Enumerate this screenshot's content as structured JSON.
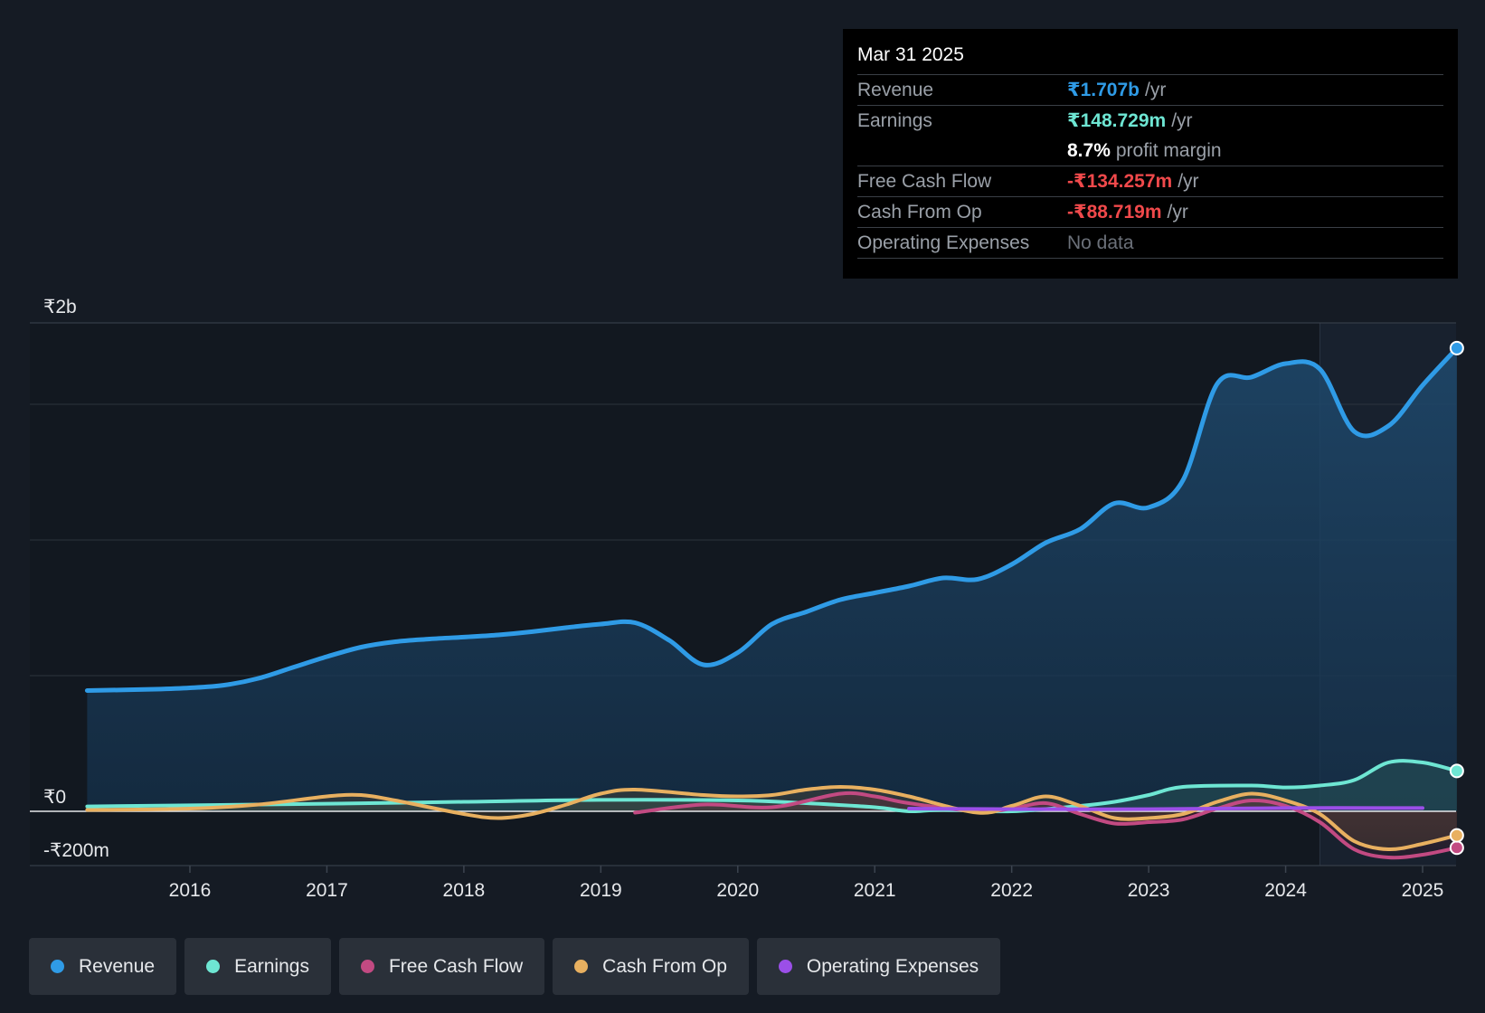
{
  "colors": {
    "background": "#151b24",
    "revenue": "#2f9be6",
    "earnings": "#6ee6d3",
    "free_cash_flow": "#c24a82",
    "cash_from_op": "#e8b060",
    "operating_expenses": "#9b4fe8",
    "negative": "#f0494b",
    "grid": "#2c333d"
  },
  "tooltip": {
    "date": "Mar 31 2025",
    "rows": [
      {
        "label": "Revenue",
        "value": "₹1.707b",
        "unit": "/yr",
        "color": "#2f9be6"
      },
      {
        "label": "Earnings",
        "value": "₹148.729m",
        "unit": "/yr",
        "color": "#6ee6d3"
      },
      {
        "label": "",
        "value": "8.7%",
        "unit": "profit margin",
        "color": "#ffffff"
      },
      {
        "label": "Free Cash Flow",
        "value": "-₹134.257m",
        "unit": "/yr",
        "color": "#f0494b"
      },
      {
        "label": "Cash From Op",
        "value": "-₹88.719m",
        "unit": "/yr",
        "color": "#f0494b"
      },
      {
        "label": "Operating Expenses",
        "value": "No data",
        "unit": "",
        "color": "#6b7079"
      }
    ]
  },
  "chart_data": {
    "type": "area",
    "y_unit": "₹ millions",
    "ylim": [
      -200,
      1800
    ],
    "y_tick_labels": [
      {
        "value": 1800,
        "label": "₹2b"
      },
      {
        "value": 0,
        "label": "₹0"
      },
      {
        "value": -200,
        "label": "-₹200m"
      }
    ],
    "y_gridlines": [
      1800,
      1500,
      1000,
      500,
      0
    ],
    "xlim": [
      2015.25,
      2025.25
    ],
    "x_ticks": [
      2016,
      2017,
      2018,
      2019,
      2020,
      2021,
      2022,
      2023,
      2024,
      2025
    ],
    "x_tick_labels": [
      "2016",
      "2017",
      "2018",
      "2019",
      "2020",
      "2021",
      "2022",
      "2023",
      "2024",
      "2025"
    ],
    "highlight_range": [
      2024.25,
      2025.25
    ],
    "series": [
      {
        "name": "Revenue",
        "key": "revenue",
        "fill": true,
        "points": [
          [
            2015.25,
            445
          ],
          [
            2015.75,
            450
          ],
          [
            2016.0,
            455
          ],
          [
            2016.25,
            465
          ],
          [
            2016.5,
            490
          ],
          [
            2016.75,
            530
          ],
          [
            2017.0,
            570
          ],
          [
            2017.25,
            605
          ],
          [
            2017.5,
            625
          ],
          [
            2017.75,
            635
          ],
          [
            2018.0,
            642
          ],
          [
            2018.25,
            650
          ],
          [
            2018.5,
            662
          ],
          [
            2018.75,
            677
          ],
          [
            2019.0,
            690
          ],
          [
            2019.25,
            695
          ],
          [
            2019.5,
            630
          ],
          [
            2019.75,
            540
          ],
          [
            2020.0,
            585
          ],
          [
            2020.25,
            690
          ],
          [
            2020.5,
            735
          ],
          [
            2020.75,
            780
          ],
          [
            2021.0,
            805
          ],
          [
            2021.25,
            830
          ],
          [
            2021.5,
            860
          ],
          [
            2021.75,
            855
          ],
          [
            2022.0,
            910
          ],
          [
            2022.25,
            990
          ],
          [
            2022.5,
            1040
          ],
          [
            2022.75,
            1135
          ],
          [
            2023.0,
            1120
          ],
          [
            2023.25,
            1220
          ],
          [
            2023.5,
            1575
          ],
          [
            2023.75,
            1600
          ],
          [
            2024.0,
            1650
          ],
          [
            2024.25,
            1630
          ],
          [
            2024.5,
            1400
          ],
          [
            2024.75,
            1420
          ],
          [
            2025.0,
            1570
          ],
          [
            2025.25,
            1707
          ]
        ]
      },
      {
        "name": "Earnings",
        "key": "earnings",
        "fill": true,
        "points": [
          [
            2015.25,
            18
          ],
          [
            2016.0,
            22
          ],
          [
            2017.0,
            28
          ],
          [
            2018.0,
            35
          ],
          [
            2019.0,
            42
          ],
          [
            2020.0,
            40
          ],
          [
            2020.5,
            30
          ],
          [
            2021.0,
            15
          ],
          [
            2021.25,
            0
          ],
          [
            2021.5,
            5
          ],
          [
            2022.0,
            0
          ],
          [
            2022.5,
            20
          ],
          [
            2022.75,
            35
          ],
          [
            2023.0,
            60
          ],
          [
            2023.25,
            90
          ],
          [
            2023.75,
            95
          ],
          [
            2024.0,
            88
          ],
          [
            2024.25,
            95
          ],
          [
            2024.5,
            115
          ],
          [
            2024.75,
            180
          ],
          [
            2025.0,
            180
          ],
          [
            2025.25,
            148.729
          ]
        ]
      },
      {
        "name": "Free Cash Flow",
        "key": "free_cash_flow",
        "fill": true,
        "points": [
          [
            2019.25,
            -5
          ],
          [
            2019.75,
            25
          ],
          [
            2020.25,
            15
          ],
          [
            2020.75,
            65
          ],
          [
            2021.0,
            55
          ],
          [
            2021.25,
            30
          ],
          [
            2021.75,
            0
          ],
          [
            2022.0,
            10
          ],
          [
            2022.25,
            30
          ],
          [
            2022.5,
            -10
          ],
          [
            2022.75,
            -45
          ],
          [
            2023.0,
            -40
          ],
          [
            2023.25,
            -30
          ],
          [
            2023.5,
            10
          ],
          [
            2023.75,
            40
          ],
          [
            2024.0,
            20
          ],
          [
            2024.25,
            -40
          ],
          [
            2024.5,
            -140
          ],
          [
            2024.75,
            -170
          ],
          [
            2025.0,
            -160
          ],
          [
            2025.25,
            -134.257
          ]
        ]
      },
      {
        "name": "Cash From Op",
        "key": "cash_from_op",
        "fill": true,
        "points": [
          [
            2015.25,
            5
          ],
          [
            2016.0,
            10
          ],
          [
            2016.5,
            25
          ],
          [
            2017.0,
            55
          ],
          [
            2017.25,
            60
          ],
          [
            2017.5,
            40
          ],
          [
            2018.0,
            -10
          ],
          [
            2018.25,
            -25
          ],
          [
            2018.5,
            -10
          ],
          [
            2018.75,
            25
          ],
          [
            2019.0,
            65
          ],
          [
            2019.25,
            80
          ],
          [
            2019.75,
            60
          ],
          [
            2020.0,
            55
          ],
          [
            2020.25,
            60
          ],
          [
            2020.5,
            80
          ],
          [
            2020.75,
            90
          ],
          [
            2021.0,
            80
          ],
          [
            2021.25,
            55
          ],
          [
            2021.75,
            -5
          ],
          [
            2022.0,
            20
          ],
          [
            2022.25,
            55
          ],
          [
            2022.5,
            20
          ],
          [
            2022.75,
            -25
          ],
          [
            2023.0,
            -25
          ],
          [
            2023.25,
            -10
          ],
          [
            2023.5,
            35
          ],
          [
            2023.75,
            65
          ],
          [
            2024.0,
            40
          ],
          [
            2024.25,
            -10
          ],
          [
            2024.5,
            -110
          ],
          [
            2024.75,
            -140
          ],
          [
            2025.0,
            -120
          ],
          [
            2025.25,
            -88.719
          ]
        ]
      },
      {
        "name": "Operating Expenses",
        "key": "operating_expenses",
        "fill": false,
        "points": [
          [
            2021.25,
            10
          ],
          [
            2022.0,
            8
          ],
          [
            2023.0,
            8
          ],
          [
            2024.0,
            12
          ],
          [
            2025.0,
            12
          ]
        ]
      }
    ]
  },
  "legend": [
    {
      "label": "Revenue",
      "color": "#2f9be6"
    },
    {
      "label": "Earnings",
      "color": "#6ee6d3"
    },
    {
      "label": "Free Cash Flow",
      "color": "#c24a82"
    },
    {
      "label": "Cash From Op",
      "color": "#e8b060"
    },
    {
      "label": "Operating Expenses",
      "color": "#9b4fe8"
    }
  ]
}
